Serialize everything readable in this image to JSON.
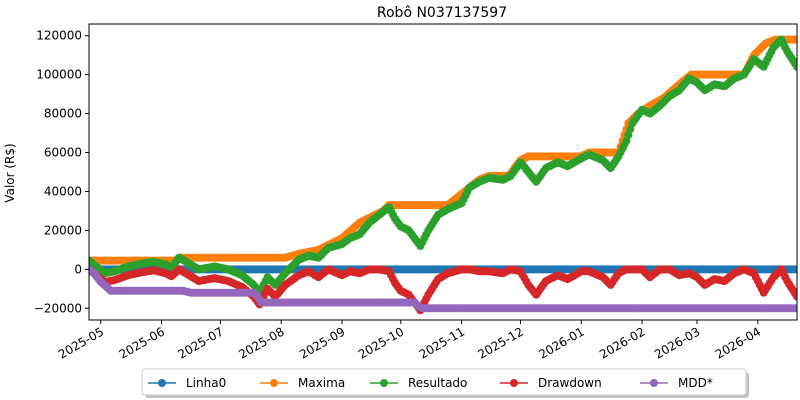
{
  "chart_data": {
    "type": "line",
    "title": "Robô N037137597",
    "xlabel": "",
    "ylabel": "Valor (R$)",
    "xlim": [
      "2025-04-25",
      "2026-04-21"
    ],
    "ylim": [
      -26000,
      126000
    ],
    "yticks": [
      -20000,
      0,
      20000,
      40000,
      60000,
      80000,
      100000,
      120000
    ],
    "ytick_labels": [
      "−20000",
      "0",
      "20000",
      "40000",
      "60000",
      "80000",
      "100000",
      "120000"
    ],
    "xticks": [
      "2025-05-01",
      "2025-06-01",
      "2025-07-01",
      "2025-08-01",
      "2025-09-01",
      "2025-10-01",
      "2025-11-01",
      "2025-12-01",
      "2026-01-01",
      "2026-02-01",
      "2026-03-01",
      "2026-04-01"
    ],
    "xtick_labels": [
      "2025-05",
      "2025-06",
      "2025-07",
      "2025-08",
      "2025-09",
      "2025-10",
      "2025-11",
      "2025-12",
      "2026-01",
      "2026-02",
      "2026-03",
      "2026-04"
    ],
    "grid": false,
    "legend_position": "bottom-center",
    "series": [
      {
        "name": "Linha0",
        "color": "#1f77b4",
        "points": [
          [
            "2025-04-25",
            0
          ],
          [
            "2026-04-21",
            0
          ]
        ]
      },
      {
        "name": "Maxima",
        "color": "#ff7f0e",
        "points": [
          [
            "2025-04-25",
            4500
          ],
          [
            "2025-06-08",
            4500
          ],
          [
            "2025-06-10",
            6000
          ],
          [
            "2025-08-03",
            6000
          ],
          [
            "2025-08-10",
            8000
          ],
          [
            "2025-08-20",
            10000
          ],
          [
            "2025-09-01",
            16000
          ],
          [
            "2025-09-10",
            24000
          ],
          [
            "2025-09-18",
            28000
          ],
          [
            "2025-09-22",
            30000
          ],
          [
            "2025-09-25",
            33000
          ],
          [
            "2025-10-25",
            33000
          ],
          [
            "2025-11-05",
            42000
          ],
          [
            "2025-11-10",
            46000
          ],
          [
            "2025-11-15",
            48000
          ],
          [
            "2025-11-25",
            48000
          ],
          [
            "2025-12-01",
            56000
          ],
          [
            "2025-12-05",
            58000
          ],
          [
            "2026-01-01",
            58000
          ],
          [
            "2026-01-05",
            60000
          ],
          [
            "2026-01-20",
            60000
          ],
          [
            "2026-01-25",
            75000
          ],
          [
            "2026-01-30",
            80000
          ],
          [
            "2026-02-05",
            84000
          ],
          [
            "2026-02-12",
            88000
          ],
          [
            "2026-02-20",
            95000
          ],
          [
            "2026-02-26",
            100000
          ],
          [
            "2026-03-25",
            100000
          ],
          [
            "2026-03-30",
            110000
          ],
          [
            "2026-04-05",
            116000
          ],
          [
            "2026-04-10",
            118000
          ],
          [
            "2026-04-21",
            118000
          ]
        ]
      },
      {
        "name": "Resultado",
        "color": "#2ca02c",
        "points": [
          [
            "2025-04-25",
            4500
          ],
          [
            "2025-04-28",
            2000
          ],
          [
            "2025-05-03",
            -2000
          ],
          [
            "2025-05-08",
            -1000
          ],
          [
            "2025-05-15",
            1500
          ],
          [
            "2025-05-22",
            3000
          ],
          [
            "2025-05-28",
            4000
          ],
          [
            "2025-06-03",
            2500
          ],
          [
            "2025-06-06",
            1000
          ],
          [
            "2025-06-10",
            6000
          ],
          [
            "2025-06-15",
            3000
          ],
          [
            "2025-06-20",
            0
          ],
          [
            "2025-06-28",
            1500
          ],
          [
            "2025-07-05",
            0
          ],
          [
            "2025-07-12",
            -3000
          ],
          [
            "2025-07-18",
            -8000
          ],
          [
            "2025-07-21",
            -12000
          ],
          [
            "2025-07-25",
            -4000
          ],
          [
            "2025-07-29",
            -8000
          ],
          [
            "2025-08-03",
            -2000
          ],
          [
            "2025-08-10",
            5000
          ],
          [
            "2025-08-15",
            7000
          ],
          [
            "2025-08-20",
            6000
          ],
          [
            "2025-08-25",
            11000
          ],
          [
            "2025-09-01",
            13000
          ],
          [
            "2025-09-05",
            16000
          ],
          [
            "2025-09-10",
            18000
          ],
          [
            "2025-09-15",
            24000
          ],
          [
            "2025-09-20",
            28000
          ],
          [
            "2025-09-25",
            32000
          ],
          [
            "2025-09-28",
            26000
          ],
          [
            "2025-10-01",
            22000
          ],
          [
            "2025-10-05",
            20000
          ],
          [
            "2025-10-08",
            16000
          ],
          [
            "2025-10-11",
            12000
          ],
          [
            "2025-10-15",
            20000
          ],
          [
            "2025-10-20",
            28000
          ],
          [
            "2025-10-25",
            31000
          ],
          [
            "2025-11-01",
            34000
          ],
          [
            "2025-11-05",
            42000
          ],
          [
            "2025-11-10",
            45000
          ],
          [
            "2025-11-15",
            47000
          ],
          [
            "2025-11-22",
            46000
          ],
          [
            "2025-11-26",
            48000
          ],
          [
            "2025-12-01",
            55000
          ],
          [
            "2025-12-05",
            50000
          ],
          [
            "2025-12-09",
            45000
          ],
          [
            "2025-12-14",
            52000
          ],
          [
            "2025-12-20",
            55000
          ],
          [
            "2025-12-25",
            53000
          ],
          [
            "2026-01-01",
            57000
          ],
          [
            "2026-01-05",
            59000
          ],
          [
            "2026-01-12",
            56000
          ],
          [
            "2026-01-16",
            52000
          ],
          [
            "2026-01-20",
            58000
          ],
          [
            "2026-01-24",
            66000
          ],
          [
            "2026-01-27",
            75000
          ],
          [
            "2026-02-01",
            82000
          ],
          [
            "2026-02-05",
            80000
          ],
          [
            "2026-02-10",
            84000
          ],
          [
            "2026-02-15",
            89000
          ],
          [
            "2026-02-20",
            92000
          ],
          [
            "2026-02-25",
            98000
          ],
          [
            "2026-03-01",
            96000
          ],
          [
            "2026-03-05",
            92000
          ],
          [
            "2026-03-10",
            95000
          ],
          [
            "2026-03-15",
            94000
          ],
          [
            "2026-03-20",
            98000
          ],
          [
            "2026-03-25",
            100000
          ],
          [
            "2026-03-30",
            108000
          ],
          [
            "2026-04-04",
            104000
          ],
          [
            "2026-04-09",
            114000
          ],
          [
            "2026-04-13",
            118000
          ],
          [
            "2026-04-16",
            112000
          ],
          [
            "2026-04-21",
            104000
          ]
        ]
      },
      {
        "name": "Drawdown",
        "color": "#d62728",
        "points": [
          [
            "2025-04-25",
            0
          ],
          [
            "2025-04-28",
            -2500
          ],
          [
            "2025-05-03",
            -6500
          ],
          [
            "2025-05-08",
            -5500
          ],
          [
            "2025-05-15",
            -3000
          ],
          [
            "2025-05-22",
            -1500
          ],
          [
            "2025-05-28",
            -500
          ],
          [
            "2025-06-03",
            -2000
          ],
          [
            "2025-06-06",
            -3500
          ],
          [
            "2025-06-10",
            0
          ],
          [
            "2025-06-15",
            -3000
          ],
          [
            "2025-06-20",
            -6000
          ],
          [
            "2025-06-28",
            -4500
          ],
          [
            "2025-07-05",
            -6000
          ],
          [
            "2025-07-12",
            -9000
          ],
          [
            "2025-07-18",
            -14000
          ],
          [
            "2025-07-21",
            -18000
          ],
          [
            "2025-07-25",
            -10000
          ],
          [
            "2025-07-29",
            -14000
          ],
          [
            "2025-08-03",
            -8000
          ],
          [
            "2025-08-10",
            -3000
          ],
          [
            "2025-08-15",
            -1000
          ],
          [
            "2025-08-20",
            -4000
          ],
          [
            "2025-08-25",
            0
          ],
          [
            "2025-09-01",
            -3000
          ],
          [
            "2025-09-05",
            -1000
          ],
          [
            "2025-09-10",
            -2000
          ],
          [
            "2025-09-15",
            0
          ],
          [
            "2025-09-20",
            0
          ],
          [
            "2025-09-25",
            -1000
          ],
          [
            "2025-09-28",
            -7000
          ],
          [
            "2025-10-01",
            -11000
          ],
          [
            "2025-10-05",
            -13000
          ],
          [
            "2025-10-08",
            -17000
          ],
          [
            "2025-10-11",
            -21000
          ],
          [
            "2025-10-15",
            -13000
          ],
          [
            "2025-10-20",
            -5000
          ],
          [
            "2025-10-25",
            -2000
          ],
          [
            "2025-11-01",
            0
          ],
          [
            "2025-11-05",
            0
          ],
          [
            "2025-11-10",
            -1000
          ],
          [
            "2025-11-15",
            -1000
          ],
          [
            "2025-11-22",
            -2000
          ],
          [
            "2025-11-26",
            0
          ],
          [
            "2025-12-01",
            -1000
          ],
          [
            "2025-12-05",
            -8000
          ],
          [
            "2025-12-09",
            -13000
          ],
          [
            "2025-12-14",
            -6000
          ],
          [
            "2025-12-20",
            -3000
          ],
          [
            "2025-12-25",
            -5000
          ],
          [
            "2026-01-01",
            -1000
          ],
          [
            "2026-01-05",
            -1000
          ],
          [
            "2026-01-12",
            -4000
          ],
          [
            "2026-01-16",
            -8000
          ],
          [
            "2026-01-20",
            -2000
          ],
          [
            "2026-01-24",
            0
          ],
          [
            "2026-01-27",
            0
          ],
          [
            "2026-02-01",
            0
          ],
          [
            "2026-02-05",
            -4000
          ],
          [
            "2026-02-10",
            0
          ],
          [
            "2026-02-15",
            0
          ],
          [
            "2026-02-20",
            -3000
          ],
          [
            "2026-02-25",
            -2000
          ],
          [
            "2026-03-01",
            -4000
          ],
          [
            "2026-03-05",
            -8000
          ],
          [
            "2026-03-10",
            -5000
          ],
          [
            "2026-03-15",
            -6000
          ],
          [
            "2026-03-20",
            -2000
          ],
          [
            "2026-03-25",
            0
          ],
          [
            "2026-03-30",
            -2000
          ],
          [
            "2026-04-04",
            -12000
          ],
          [
            "2026-04-09",
            -4000
          ],
          [
            "2026-04-13",
            0
          ],
          [
            "2026-04-16",
            -6000
          ],
          [
            "2026-04-21",
            -14000
          ]
        ]
      },
      {
        "name": "MDD*",
        "color": "#9467bd",
        "points": [
          [
            "2025-04-25",
            0
          ],
          [
            "2025-04-28",
            -2500
          ],
          [
            "2025-05-01",
            -6500
          ],
          [
            "2025-05-04",
            -9000
          ],
          [
            "2025-05-06",
            -11000
          ],
          [
            "2025-06-12",
            -11000
          ],
          [
            "2025-06-16",
            -12000
          ],
          [
            "2025-07-18",
            -12000
          ],
          [
            "2025-07-20",
            -14000
          ],
          [
            "2025-07-22",
            -17000
          ],
          [
            "2025-10-08",
            -17000
          ],
          [
            "2025-10-10",
            -19000
          ],
          [
            "2025-10-12",
            -20000
          ],
          [
            "2026-04-21",
            -20000
          ]
        ]
      }
    ]
  }
}
